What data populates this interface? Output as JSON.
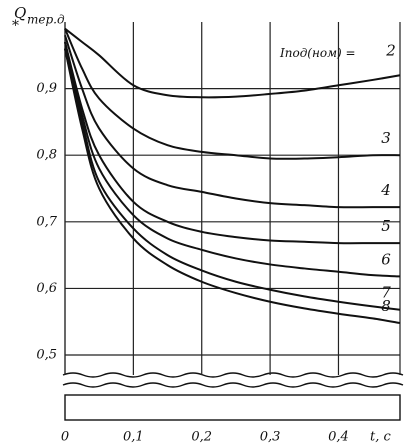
{
  "chart_data": {
    "type": "line",
    "ylabel": {
      "main": "Q",
      "sub": "тер.д",
      "mark": "*"
    },
    "xlabel": "t, c",
    "annotation": "Iпод(ном) =",
    "x": [
      0,
      0.025,
      0.05,
      0.1,
      0.15,
      0.2,
      0.25,
      0.3,
      0.35,
      0.4,
      0.45,
      0.49
    ],
    "series": [
      {
        "name": "2",
        "color": "#111111",
        "values": [
          0.99,
          0.97,
          0.95,
          0.905,
          0.89,
          0.887,
          0.888,
          0.892,
          0.897,
          0.905,
          0.913,
          0.92
        ]
      },
      {
        "name": "3",
        "color": "#111111",
        "values": [
          0.99,
          0.93,
          0.885,
          0.84,
          0.815,
          0.805,
          0.8,
          0.795,
          0.795,
          0.797,
          0.8,
          0.8
        ]
      },
      {
        "name": "4",
        "color": "#111111",
        "values": [
          0.98,
          0.9,
          0.84,
          0.78,
          0.755,
          0.745,
          0.735,
          0.728,
          0.725,
          0.722,
          0.722,
          0.722
        ]
      },
      {
        "name": "5",
        "color": "#111111",
        "values": [
          0.97,
          0.87,
          0.8,
          0.73,
          0.7,
          0.685,
          0.677,
          0.672,
          0.67,
          0.668,
          0.668,
          0.668
        ]
      },
      {
        "name": "6",
        "color": "#111111",
        "values": [
          0.97,
          0.86,
          0.78,
          0.71,
          0.675,
          0.658,
          0.645,
          0.636,
          0.63,
          0.625,
          0.62,
          0.618
        ]
      },
      {
        "name": "7",
        "color": "#111111",
        "values": [
          0.96,
          0.85,
          0.76,
          0.69,
          0.65,
          0.627,
          0.61,
          0.598,
          0.588,
          0.58,
          0.573,
          0.568
        ]
      },
      {
        "name": "8",
        "color": "#111111",
        "values": [
          0.96,
          0.84,
          0.75,
          0.675,
          0.635,
          0.61,
          0.593,
          0.58,
          0.57,
          0.562,
          0.555,
          0.548
        ]
      }
    ],
    "xlim": [
      0,
      0.49
    ],
    "ylim": [
      0.47,
      1.0
    ],
    "xticks": [
      {
        "value": 0,
        "label": "0"
      },
      {
        "value": 0.1,
        "label": "0,1"
      },
      {
        "value": 0.2,
        "label": "0,2"
      },
      {
        "value": 0.3,
        "label": "0,3"
      },
      {
        "value": 0.4,
        "label": "0,4"
      }
    ],
    "yticks": [
      {
        "value": 0.5,
        "label": "0,5"
      },
      {
        "value": 0.6,
        "label": "0,6"
      },
      {
        "value": 0.7,
        "label": "0,7"
      },
      {
        "value": 0.8,
        "label": "0,8"
      },
      {
        "value": 0.9,
        "label": "0,9"
      }
    ],
    "grid": true
  }
}
